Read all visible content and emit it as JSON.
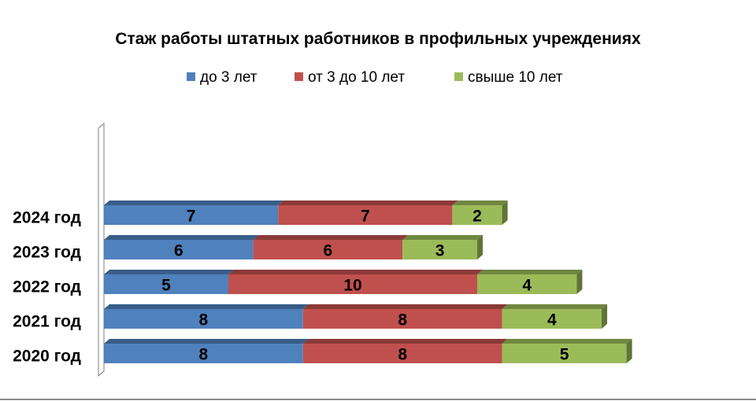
{
  "chart_data": {
    "type": "bar",
    "orientation": "horizontal",
    "stacked": true,
    "style": "3d",
    "title": "Стаж работы  штатных работников  в профильных учреждениях",
    "legend_position": "top",
    "grid": false,
    "categories": [
      "2024 год",
      "2023 год",
      "2022 год",
      "2021 год",
      "2020 год"
    ],
    "series": [
      {
        "name": "до  3 лет",
        "color": "#4F81BD",
        "values": [
          7,
          6,
          5,
          8,
          8
        ]
      },
      {
        "name": "от 3 до 10 лет",
        "color": "#C0504D",
        "values": [
          7,
          6,
          10,
          8,
          8
        ]
      },
      {
        "name": "свыше 10 лет",
        "color": "#9BBB59",
        "values": [
          2,
          3,
          4,
          4,
          5
        ]
      }
    ],
    "xlim": [
      0,
      22
    ]
  }
}
